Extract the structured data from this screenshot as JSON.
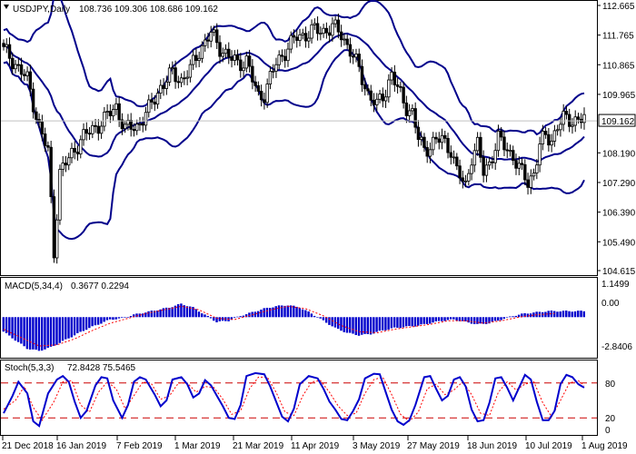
{
  "chart_data": [
    {
      "type": "candlestick",
      "symbol_title": "USDJPY,Daily",
      "ohlc_readout": "108.736 109.306 108.686 109.162",
      "price_ticks": [
        "112.665",
        "111.765",
        "110.865",
        "109.965",
        "109.162",
        "108.190",
        "107.290",
        "106.390",
        "105.490",
        "104.615"
      ],
      "ylim": [
        104.615,
        112.665
      ],
      "current_price": 109.162,
      "indicator": "Bollinger Bands",
      "date_labels": [
        "21 Dec 2018",
        "16 Jan 2019",
        "7 Feb 2019",
        "1 Mar 2019",
        "21 Mar 2019",
        "11 Apr 2019",
        "3 May 2019",
        "27 May 2019",
        "18 Jun 2019",
        "10 Jul 2019",
        "1 Aug 2019"
      ],
      "close_path": [
        [
          0,
          111.3
        ],
        [
          4,
          110.9
        ],
        [
          8,
          110.4
        ],
        [
          12,
          109.0
        ],
        [
          15,
          108.2
        ],
        [
          17,
          105.2
        ],
        [
          19,
          107.6
        ],
        [
          22,
          108.0
        ],
        [
          26,
          108.6
        ],
        [
          30,
          108.9
        ],
        [
          34,
          109.2
        ],
        [
          38,
          109.6
        ],
        [
          41,
          108.9
        ],
        [
          45,
          109.0
        ],
        [
          49,
          109.5
        ],
        [
          53,
          110.2
        ],
        [
          57,
          110.6
        ],
        [
          60,
          110.4
        ],
        [
          63,
          110.7
        ],
        [
          66,
          111.3
        ],
        [
          70,
          111.8
        ],
        [
          73,
          111.4
        ],
        [
          76,
          111.1
        ],
        [
          79,
          110.9
        ],
        [
          82,
          111.0
        ],
        [
          84,
          110.4
        ],
        [
          86,
          109.9
        ],
        [
          88,
          110.0
        ],
        [
          92,
          110.9
        ],
        [
          96,
          111.4
        ],
        [
          99,
          111.7
        ],
        [
          102,
          111.8
        ],
        [
          105,
          111.9
        ],
        [
          108,
          111.9
        ],
        [
          111,
          112.0
        ],
        [
          114,
          111.8
        ],
        [
          117,
          111.3
        ],
        [
          120,
          110.7
        ],
        [
          123,
          110.0
        ],
        [
          126,
          109.6
        ],
        [
          129,
          110.1
        ],
        [
          131,
          110.6
        ],
        [
          133,
          110.1
        ],
        [
          136,
          109.6
        ],
        [
          138,
          109.4
        ],
        [
          140,
          108.6
        ],
        [
          142,
          108.3
        ],
        [
          145,
          108.5
        ],
        [
          148,
          108.6
        ],
        [
          151,
          108.3
        ],
        [
          153,
          107.6
        ],
        [
          156,
          107.2
        ],
        [
          158,
          108.1
        ],
        [
          160,
          108.4
        ],
        [
          162,
          107.6
        ],
        [
          164,
          107.9
        ],
        [
          167,
          108.6
        ],
        [
          170,
          108.3
        ],
        [
          172,
          108.1
        ],
        [
          174,
          107.7
        ],
        [
          177,
          107.3
        ],
        [
          179,
          107.6
        ],
        [
          181,
          108.4
        ],
        [
          183,
          108.7
        ],
        [
          185,
          108.6
        ],
        [
          187,
          109.0
        ],
        [
          189,
          109.2
        ]
      ]
    },
    {
      "type": "histogram",
      "title": "MACD(5,34,4)",
      "values_readout": "0.3677 0.2294",
      "ticks": [
        "1.1499",
        "0.00",
        "-2.8406"
      ],
      "ylim": [
        -2.8406,
        1.1499
      ],
      "main_path": [
        [
          0,
          -1.2
        ],
        [
          4,
          -1.9
        ],
        [
          8,
          -2.6
        ],
        [
          12,
          -2.8
        ],
        [
          16,
          -2.5
        ],
        [
          20,
          -2.0
        ],
        [
          24,
          -1.5
        ],
        [
          28,
          -1.0
        ],
        [
          32,
          -0.6
        ],
        [
          36,
          -0.2
        ],
        [
          40,
          -0.1
        ],
        [
          44,
          0.2
        ],
        [
          48,
          0.4
        ],
        [
          52,
          0.6
        ],
        [
          56,
          0.8
        ],
        [
          60,
          1.1
        ],
        [
          64,
          0.8
        ],
        [
          68,
          0.2
        ],
        [
          72,
          -0.4
        ],
        [
          76,
          -0.3
        ],
        [
          80,
          0.1
        ],
        [
          84,
          0.4
        ],
        [
          88,
          0.7
        ],
        [
          92,
          0.9
        ],
        [
          96,
          1.0
        ],
        [
          100,
          0.8
        ],
        [
          104,
          0.3
        ],
        [
          108,
          -0.3
        ],
        [
          112,
          -0.9
        ],
        [
          116,
          -1.3
        ],
        [
          120,
          -1.5
        ],
        [
          124,
          -1.4
        ],
        [
          128,
          -1.1
        ],
        [
          132,
          -0.9
        ],
        [
          136,
          -0.8
        ],
        [
          140,
          -0.7
        ],
        [
          144,
          -0.5
        ],
        [
          148,
          -0.3
        ],
        [
          152,
          -0.2
        ],
        [
          156,
          -0.4
        ],
        [
          160,
          -0.6
        ],
        [
          164,
          -0.5
        ],
        [
          168,
          -0.2
        ],
        [
          172,
          0.1
        ],
        [
          176,
          0.3
        ],
        [
          180,
          0.4
        ],
        [
          184,
          0.5
        ]
      ],
      "signal_path": [
        [
          0,
          -1.0
        ],
        [
          6,
          -1.7
        ],
        [
          12,
          -2.4
        ],
        [
          18,
          -2.3
        ],
        [
          24,
          -1.8
        ],
        [
          30,
          -1.1
        ],
        [
          36,
          -0.5
        ],
        [
          42,
          -0.1
        ],
        [
          48,
          0.3
        ],
        [
          54,
          0.6
        ],
        [
          60,
          0.9
        ],
        [
          66,
          0.6
        ],
        [
          72,
          -0.1
        ],
        [
          78,
          -0.2
        ],
        [
          84,
          0.2
        ],
        [
          90,
          0.6
        ],
        [
          96,
          0.9
        ],
        [
          102,
          0.7
        ],
        [
          108,
          0.1
        ],
        [
          114,
          -0.7
        ],
        [
          120,
          -1.2
        ],
        [
          126,
          -1.3
        ],
        [
          132,
          -1.0
        ],
        [
          138,
          -0.8
        ],
        [
          144,
          -0.6
        ],
        [
          150,
          -0.3
        ],
        [
          156,
          -0.3
        ],
        [
          162,
          -0.5
        ],
        [
          168,
          -0.3
        ],
        [
          174,
          0.0
        ],
        [
          180,
          0.2
        ],
        [
          186,
          0.3
        ]
      ]
    },
    {
      "type": "line",
      "title": "Stoch(5,3,3)",
      "values_readout": "72.8428 75.5465",
      "ticks": [
        "80",
        "20",
        "0"
      ],
      "ylim": [
        0,
        100
      ],
      "level_lines": [
        80,
        20
      ],
      "k_path": [
        [
          0,
          28
        ],
        [
          3,
          58
        ],
        [
          5,
          82
        ],
        [
          8,
          62
        ],
        [
          10,
          14
        ],
        [
          12,
          6
        ],
        [
          15,
          62
        ],
        [
          18,
          86
        ],
        [
          20,
          92
        ],
        [
          22,
          82
        ],
        [
          24,
          48
        ],
        [
          26,
          20
        ],
        [
          28,
          32
        ],
        [
          31,
          76
        ],
        [
          33,
          90
        ],
        [
          35,
          88
        ],
        [
          37,
          50
        ],
        [
          40,
          20
        ],
        [
          42,
          42
        ],
        [
          44,
          82
        ],
        [
          46,
          90
        ],
        [
          48,
          86
        ],
        [
          51,
          60
        ],
        [
          53,
          40
        ],
        [
          55,
          50
        ],
        [
          57,
          86
        ],
        [
          60,
          90
        ],
        [
          62,
          78
        ],
        [
          64,
          55
        ],
        [
          66,
          62
        ],
        [
          68,
          85
        ],
        [
          70,
          76
        ],
        [
          72,
          58
        ],
        [
          74,
          40
        ],
        [
          76,
          20
        ],
        [
          78,
          18
        ],
        [
          80,
          42
        ],
        [
          82,
          92
        ],
        [
          85,
          97
        ],
        [
          88,
          95
        ],
        [
          90,
          74
        ],
        [
          92,
          48
        ],
        [
          94,
          22
        ],
        [
          96,
          14
        ],
        [
          98,
          36
        ],
        [
          100,
          78
        ],
        [
          103,
          92
        ],
        [
          106,
          88
        ],
        [
          108,
          70
        ],
        [
          110,
          48
        ],
        [
          112,
          34
        ],
        [
          114,
          18
        ],
        [
          116,
          16
        ],
        [
          118,
          32
        ],
        [
          120,
          52
        ],
        [
          122,
          88
        ],
        [
          125,
          96
        ],
        [
          127,
          95
        ],
        [
          129,
          64
        ],
        [
          131,
          34
        ],
        [
          133,
          14
        ],
        [
          135,
          8
        ],
        [
          137,
          16
        ],
        [
          139,
          42
        ],
        [
          142,
          90
        ],
        [
          144,
          92
        ],
        [
          146,
          70
        ],
        [
          148,
          50
        ],
        [
          150,
          58
        ],
        [
          152,
          86
        ],
        [
          154,
          90
        ],
        [
          156,
          74
        ],
        [
          158,
          34
        ],
        [
          160,
          14
        ],
        [
          162,
          16
        ],
        [
          164,
          46
        ],
        [
          166,
          88
        ],
        [
          168,
          90
        ],
        [
          170,
          72
        ],
        [
          172,
          50
        ],
        [
          174,
          72
        ],
        [
          176,
          94
        ],
        [
          178,
          86
        ],
        [
          180,
          48
        ],
        [
          182,
          16
        ],
        [
          184,
          16
        ],
        [
          186,
          32
        ],
        [
          188,
          78
        ],
        [
          190,
          94
        ],
        [
          192,
          90
        ],
        [
          194,
          78
        ],
        [
          196,
          72
        ]
      ],
      "d_path": [
        [
          0,
          35
        ],
        [
          4,
          50
        ],
        [
          7,
          74
        ],
        [
          10,
          38
        ],
        [
          13,
          16
        ],
        [
          17,
          48
        ],
        [
          20,
          82
        ],
        [
          23,
          84
        ],
        [
          26,
          42
        ],
        [
          29,
          30
        ],
        [
          32,
          64
        ],
        [
          35,
          82
        ],
        [
          38,
          70
        ],
        [
          41,
          36
        ],
        [
          44,
          58
        ],
        [
          47,
          82
        ],
        [
          50,
          78
        ],
        [
          53,
          52
        ],
        [
          56,
          58
        ],
        [
          59,
          80
        ],
        [
          62,
          80
        ],
        [
          65,
          64
        ],
        [
          68,
          74
        ],
        [
          71,
          72
        ],
        [
          74,
          52
        ],
        [
          77,
          26
        ],
        [
          80,
          32
        ],
        [
          83,
          70
        ],
        [
          86,
          90
        ],
        [
          89,
          90
        ],
        [
          92,
          64
        ],
        [
          95,
          30
        ],
        [
          98,
          24
        ],
        [
          101,
          58
        ],
        [
          104,
          82
        ],
        [
          107,
          84
        ],
        [
          110,
          64
        ],
        [
          113,
          40
        ],
        [
          116,
          24
        ],
        [
          119,
          28
        ],
        [
          122,
          62
        ],
        [
          125,
          86
        ],
        [
          128,
          90
        ],
        [
          131,
          60
        ],
        [
          134,
          26
        ],
        [
          137,
          14
        ],
        [
          140,
          30
        ],
        [
          143,
          70
        ],
        [
          146,
          78
        ],
        [
          149,
          60
        ],
        [
          152,
          68
        ],
        [
          155,
          82
        ],
        [
          158,
          60
        ],
        [
          161,
          28
        ],
        [
          164,
          24
        ],
        [
          167,
          64
        ],
        [
          170,
          82
        ],
        [
          173,
          68
        ],
        [
          176,
          78
        ],
        [
          179,
          82
        ],
        [
          182,
          46
        ],
        [
          185,
          22
        ],
        [
          188,
          50
        ],
        [
          191,
          80
        ],
        [
          194,
          84
        ],
        [
          196,
          76
        ]
      ]
    }
  ],
  "date_axis": [
    "21 Dec 2018",
    "16 Jan 2019",
    "7 Feb 2019",
    "1 Mar 2019",
    "21 Mar 2019",
    "11 Apr 2019",
    "3 May 2019",
    "27 May 2019",
    "18 Jun 2019",
    "10 Jul 2019",
    "1 Aug 2019"
  ],
  "colors": {
    "bands": "#00008b",
    "candle": "#000000",
    "histogram": "#0000cc",
    "signal": "#ff0000",
    "stoch_main": "#0000cc",
    "level": "#cc0000",
    "price_line": "#c0c0c0",
    "price_label_bg": "#ffffff"
  }
}
